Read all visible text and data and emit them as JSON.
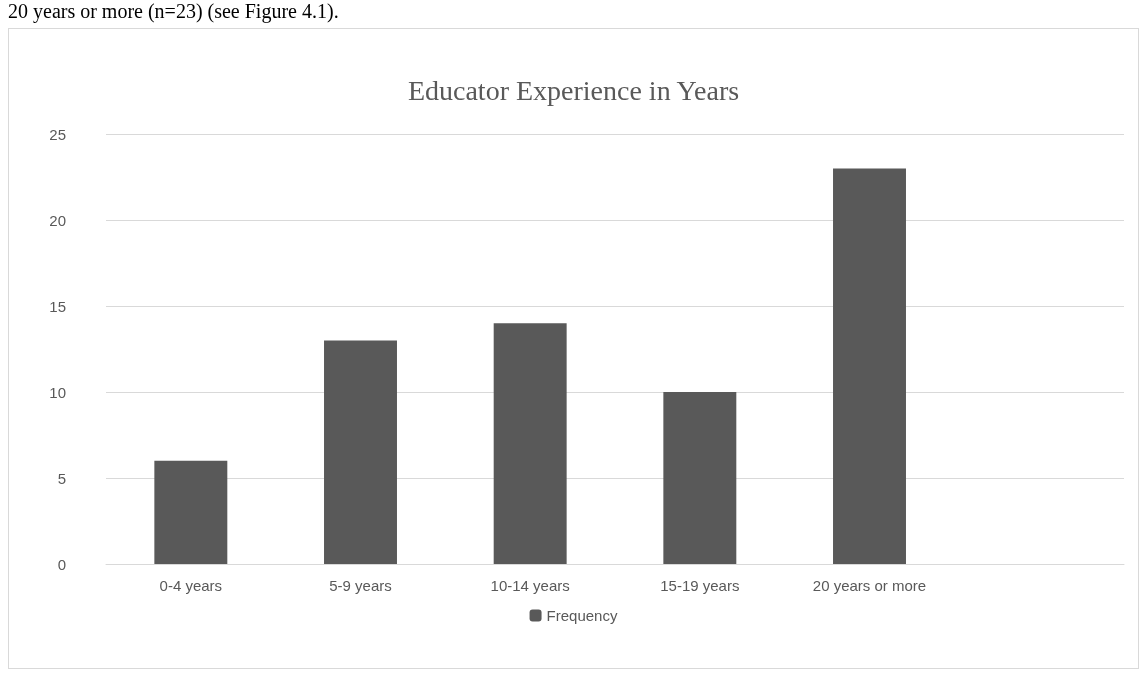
{
  "chart_data": {
    "type": "bar",
    "title": "Educator Experience in Years",
    "annotations": [
      "20 years or more (n=23) (see Figure 4.1)."
    ],
    "categories": [
      "0-4 years",
      "5-9 years",
      "10-14 years",
      "15-19 years",
      "20 years or more",
      null
    ],
    "series": [
      {
        "name": "Frequency",
        "color": "#595959",
        "values": [
          6,
          13,
          14,
          10,
          23,
          null
        ]
      }
    ],
    "ylim": [
      0,
      25
    ],
    "yticks": [
      0,
      5,
      10,
      15,
      20,
      25
    ],
    "grid": "y",
    "legend": "bottom"
  }
}
